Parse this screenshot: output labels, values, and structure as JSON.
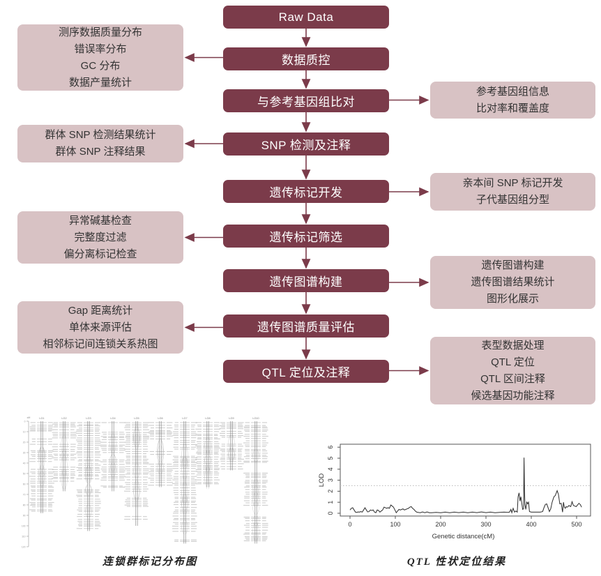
{
  "flowchart": {
    "main_steps": [
      {
        "label": "Raw Data"
      },
      {
        "label": "数据质控"
      },
      {
        "label": "与参考基因组比对"
      },
      {
        "label": "SNP 检测及注释"
      },
      {
        "label": "遗传标记开发"
      },
      {
        "label": "遗传标记筛选"
      },
      {
        "label": "遗传图谱构建"
      },
      {
        "label": "遗传图谱质量评估"
      },
      {
        "label": "QTL 定位及注释"
      }
    ],
    "left_outputs": [
      {
        "from_step": "数据质控",
        "lines": [
          "测序数据质量分布",
          "错误率分布",
          "GC 分布",
          "数据产量统计"
        ]
      },
      {
        "from_step": "SNP 检测及注释",
        "lines": [
          "群体 SNP 检测结果统计",
          "群体 SNP 注释结果"
        ]
      },
      {
        "from_step": "遗传标记筛选",
        "lines": [
          "异常碱基检查",
          "完整度过滤",
          "偏分离标记检查"
        ]
      },
      {
        "from_step": "遗传图谱质量评估",
        "lines": [
          "Gap 距离统计",
          "单体来源评估",
          "相邻标记间连锁关系热图"
        ]
      }
    ],
    "right_outputs": [
      {
        "from_step": "与参考基因组比对",
        "lines": [
          "参考基因组信息",
          "比对率和覆盖度"
        ]
      },
      {
        "from_step": "遗传标记开发",
        "lines": [
          "亲本间 SNP 标记开发",
          "子代基因组分型"
        ]
      },
      {
        "from_step": "遗传图谱构建",
        "lines": [
          "遗传图谱构建",
          "遗传图谱结果统计",
          "图形化展示"
        ]
      },
      {
        "from_step": "QTL 定位及注释",
        "lines": [
          "表型数据处理",
          "QTL 定位",
          "QTL 区间注释",
          "候选基因功能注释"
        ]
      }
    ],
    "colors": {
      "step_fill": "#7B3B4A",
      "step_text": "#FFFFFF",
      "output_fill": "#D8C2C4",
      "output_text": "#333333",
      "arrow": "#7B3B4A"
    }
  },
  "figures": {
    "linkage": {
      "caption": "连锁群标记分布图"
    },
    "qtl": {
      "caption": "QTL 性状定位结果"
    }
  },
  "chart_data": [
    {
      "type": "line",
      "title": "QTL 性状定位结果",
      "xlabel": "Genetic distance(cM)",
      "ylabel": "LOD",
      "xlim": [
        0,
        520
      ],
      "ylim": [
        0,
        6
      ],
      "x_ticks": [
        0,
        100,
        200,
        300,
        400,
        500
      ],
      "y_ticks": [
        0,
        1,
        2,
        3,
        4,
        5,
        6
      ],
      "threshold_line": 2.5,
      "grid": false,
      "x": [
        0,
        3,
        6,
        9,
        12,
        15,
        18,
        21,
        24,
        27,
        30,
        33,
        36,
        39,
        42,
        45,
        48,
        51,
        54,
        57,
        60,
        63,
        66,
        69,
        72,
        75,
        78,
        81,
        84,
        87,
        90,
        93,
        96,
        99,
        102,
        105,
        108,
        111,
        114,
        117,
        120,
        123,
        126,
        129,
        132,
        135,
        138,
        141,
        144,
        147,
        150,
        155,
        160,
        165,
        170,
        175,
        180,
        190,
        200,
        210,
        220,
        230,
        240,
        250,
        260,
        270,
        280,
        290,
        300,
        310,
        320,
        330,
        340,
        348,
        352,
        355,
        357,
        360,
        363,
        366,
        369,
        371,
        373,
        375,
        377,
        379,
        381,
        383,
        384,
        385,
        386,
        388,
        390,
        392,
        394,
        396,
        400,
        405,
        410,
        415,
        420,
        425,
        428,
        431,
        434,
        437,
        440,
        443,
        446,
        450,
        453,
        457,
        460,
        463,
        466,
        469,
        471,
        473,
        475,
        477,
        479,
        481,
        483,
        485,
        487,
        490,
        493,
        496,
        499,
        502,
        505,
        508,
        511
      ],
      "y": [
        0.3,
        0.45,
        0.5,
        0.3,
        0.1,
        0.08,
        0.12,
        0.1,
        0.15,
        0.1,
        0.3,
        0.5,
        0.3,
        0.12,
        0.15,
        0.3,
        0.25,
        0.3,
        0.1,
        0.05,
        0.3,
        0.25,
        0.1,
        0.2,
        0.3,
        0.55,
        0.5,
        0.45,
        0.5,
        0.45,
        0.75,
        0.65,
        0.55,
        0.3,
        0.05,
        0.2,
        0.35,
        0.3,
        0.35,
        0.4,
        0.3,
        0.35,
        0.4,
        0.45,
        0.55,
        0.6,
        0.45,
        0.35,
        0.2,
        0.1,
        0.08,
        0.05,
        0.12,
        0.05,
        0.12,
        0.05,
        0.05,
        0.08,
        0.05,
        0.1,
        0.05,
        0.1,
        0.06,
        0.1,
        0.05,
        0.1,
        0.06,
        0.12,
        0.06,
        0.1,
        0.05,
        0.08,
        0.1,
        0.08,
        0.1,
        0.35,
        0.05,
        0.45,
        0.1,
        0.2,
        0.1,
        1.5,
        1.85,
        1.1,
        1.5,
        0.9,
        0.35,
        0.4,
        5.05,
        2.0,
        0.8,
        0.35,
        1.05,
        0.85,
        1.0,
        0.15,
        0.1,
        0.1,
        0.1,
        0.1,
        0.1,
        0.15,
        0.5,
        0.8,
        0.85,
        0.5,
        0.15,
        0.4,
        1.0,
        1.5,
        1.6,
        2.05,
        1.7,
        0.85,
        0.9,
        0.1,
        1.0,
        0.55,
        0.45,
        0.6,
        0.55,
        0.6,
        0.7,
        0.65,
        0.6,
        1.05,
        0.7,
        0.65,
        0.6,
        0.75,
        0.9,
        0.8,
        0.55
      ]
    },
    {
      "type": "linkage-map",
      "title": "连锁群标记分布图",
      "axis_unit": "cM",
      "axis_min": 0,
      "axis_max": 120,
      "axis_step": 10,
      "groups": [
        {
          "label": "LG1",
          "length_cM": 88
        },
        {
          "label": "LG2",
          "length_cM": 67
        },
        {
          "label": "LG3",
          "length_cM": 105
        },
        {
          "label": "LG4",
          "length_cM": 67
        },
        {
          "label": "LG5",
          "length_cM": 100
        },
        {
          "label": "LG6",
          "length_cM": 63
        },
        {
          "label": "LG7",
          "length_cM": 117
        },
        {
          "label": "LG8",
          "length_cM": 63
        },
        {
          "label": "LG9",
          "length_cM": 47
        },
        {
          "label": "LG10",
          "length_cM": 117
        }
      ]
    }
  ]
}
